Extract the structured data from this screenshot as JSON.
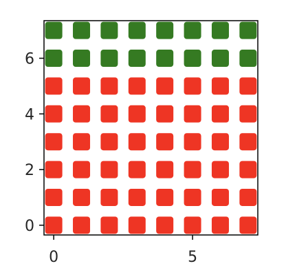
{
  "chart_data": {
    "type": "scatter",
    "title": "",
    "xlabel": "",
    "ylabel": "",
    "xlim": [
      -0.35,
      7.35
    ],
    "ylim": [
      -0.35,
      7.35
    ],
    "x_ticks": [
      0,
      5
    ],
    "y_ticks": [
      0,
      2,
      4,
      6
    ],
    "grid": false,
    "marker": "rounded-square",
    "series": [
      {
        "color": "#ee3524",
        "points": [
          [
            0,
            0
          ],
          [
            1,
            0
          ],
          [
            2,
            0
          ],
          [
            3,
            0
          ],
          [
            4,
            0
          ],
          [
            5,
            0
          ],
          [
            6,
            0
          ],
          [
            7,
            0
          ],
          [
            0,
            1
          ],
          [
            1,
            1
          ],
          [
            2,
            1
          ],
          [
            3,
            1
          ],
          [
            4,
            1
          ],
          [
            5,
            1
          ],
          [
            6,
            1
          ],
          [
            7,
            1
          ],
          [
            0,
            2
          ],
          [
            1,
            2
          ],
          [
            2,
            2
          ],
          [
            3,
            2
          ],
          [
            4,
            2
          ],
          [
            5,
            2
          ],
          [
            6,
            2
          ],
          [
            7,
            2
          ],
          [
            0,
            3
          ],
          [
            1,
            3
          ],
          [
            2,
            3
          ],
          [
            3,
            3
          ],
          [
            4,
            3
          ],
          [
            5,
            3
          ],
          [
            6,
            3
          ],
          [
            7,
            3
          ],
          [
            0,
            4
          ],
          [
            1,
            4
          ],
          [
            2,
            4
          ],
          [
            3,
            4
          ],
          [
            4,
            4
          ],
          [
            5,
            4
          ],
          [
            6,
            4
          ],
          [
            7,
            4
          ],
          [
            0,
            5
          ],
          [
            1,
            5
          ],
          [
            2,
            5
          ],
          [
            3,
            5
          ],
          [
            4,
            5
          ],
          [
            5,
            5
          ],
          [
            6,
            5
          ],
          [
            7,
            5
          ]
        ]
      },
      {
        "color": "#357a22",
        "points": [
          [
            0,
            6
          ],
          [
            1,
            6
          ],
          [
            2,
            6
          ],
          [
            3,
            6
          ],
          [
            4,
            6
          ],
          [
            5,
            6
          ],
          [
            6,
            6
          ],
          [
            7,
            6
          ],
          [
            0,
            7
          ],
          [
            1,
            7
          ],
          [
            2,
            7
          ],
          [
            3,
            7
          ],
          [
            4,
            7
          ],
          [
            5,
            7
          ],
          [
            6,
            7
          ],
          [
            7,
            7
          ]
        ]
      }
    ]
  }
}
